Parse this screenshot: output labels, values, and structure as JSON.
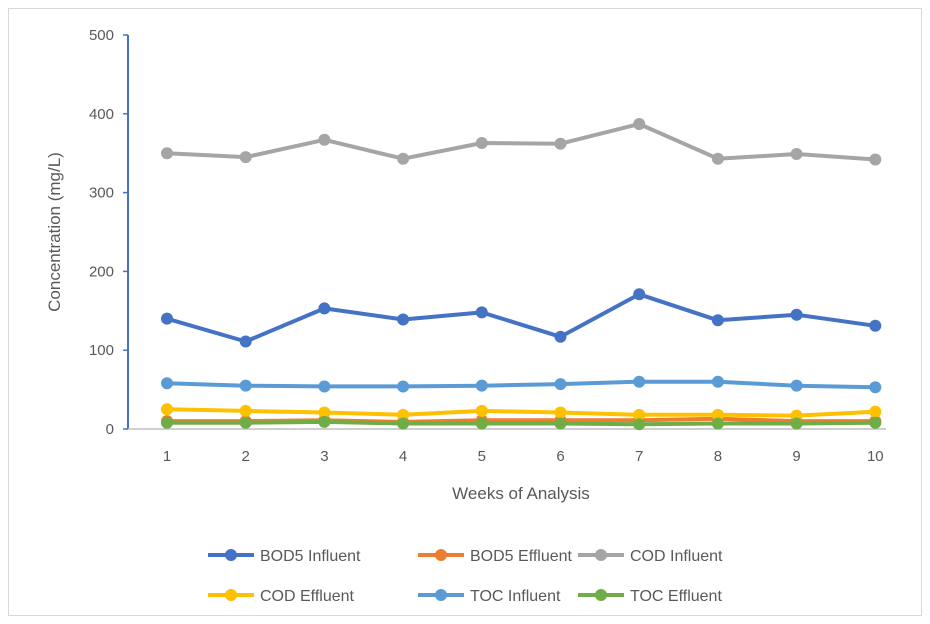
{
  "chart_data": {
    "type": "line",
    "title": "",
    "xlabel": "Weeks of Analysis",
    "ylabel": "Concentration (mg/L)",
    "categories": [
      "1",
      "2",
      "3",
      "4",
      "5",
      "6",
      "7",
      "8",
      "9",
      "10"
    ],
    "ylim": [
      0,
      500
    ],
    "yticks": [
      0,
      100,
      200,
      300,
      400,
      500
    ],
    "grid": false,
    "legend_position": "bottom",
    "series": [
      {
        "name": "BOD5 Influent",
        "color": "#4472c4",
        "values": [
          140,
          111,
          153,
          139,
          148,
          117,
          171,
          138,
          145,
          131
        ]
      },
      {
        "name": "BOD5 Effluent",
        "color": "#ed7d31",
        "values": [
          10,
          10,
          11,
          9,
          11,
          11,
          11,
          13,
          10,
          10
        ]
      },
      {
        "name": "COD Influent",
        "color": "#a5a5a5",
        "values": [
          350,
          345,
          367,
          343,
          363,
          362,
          387,
          343,
          349,
          342
        ]
      },
      {
        "name": "COD Effluent",
        "color": "#ffc000",
        "values": [
          25,
          23,
          21,
          18,
          23,
          21,
          18,
          18,
          17,
          22
        ]
      },
      {
        "name": "TOC Influent",
        "color": "#5b9bd5",
        "values": [
          58,
          55,
          54,
          54,
          55,
          57,
          60,
          60,
          55,
          53
        ]
      },
      {
        "name": "TOC Effluent",
        "color": "#70ad47",
        "values": [
          8,
          8,
          9,
          7,
          7,
          7,
          6,
          7,
          7,
          8
        ]
      }
    ]
  }
}
